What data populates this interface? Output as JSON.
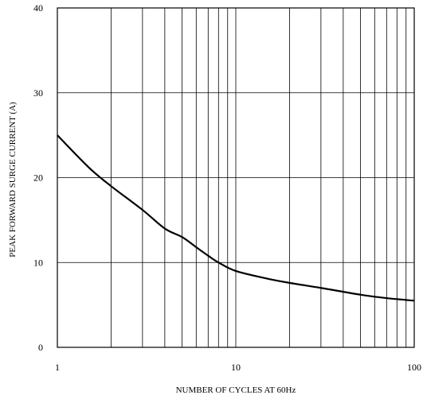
{
  "chart_data": {
    "type": "line",
    "xlabel": "NUMBER OF CYCLES AT 60Hz",
    "ylabel": "PEAK FORWARD SURGE CURRENT (A)",
    "x_scale": "log",
    "xlim": [
      1,
      100
    ],
    "ylim": [
      0,
      40
    ],
    "grid": true,
    "x_ticks": [
      {
        "value": 1,
        "label": "1"
      },
      {
        "value": 10,
        "label": "10"
      },
      {
        "value": 100,
        "label": "100"
      }
    ],
    "y_ticks": [
      {
        "value": 0,
        "label": "0"
      },
      {
        "value": 10,
        "label": "10"
      },
      {
        "value": 20,
        "label": "20"
      },
      {
        "value": 30,
        "label": "30"
      },
      {
        "value": 40,
        "label": "40"
      }
    ],
    "x_minor_grid": [
      2,
      3,
      4,
      5,
      6,
      7,
      8,
      9,
      20,
      30,
      40,
      50,
      60,
      70,
      80,
      90
    ],
    "series": [
      {
        "color": "#000000",
        "x": [
          1,
          1.5,
          2,
          3,
          4,
          5,
          6,
          7,
          8,
          10,
          15,
          20,
          30,
          50,
          70,
          100
        ],
        "y": [
          25,
          21.2,
          19,
          16.2,
          14,
          13,
          11.8,
          10.8,
          10,
          9,
          8.1,
          7.6,
          7,
          6.2,
          5.8,
          5.5
        ]
      }
    ]
  }
}
